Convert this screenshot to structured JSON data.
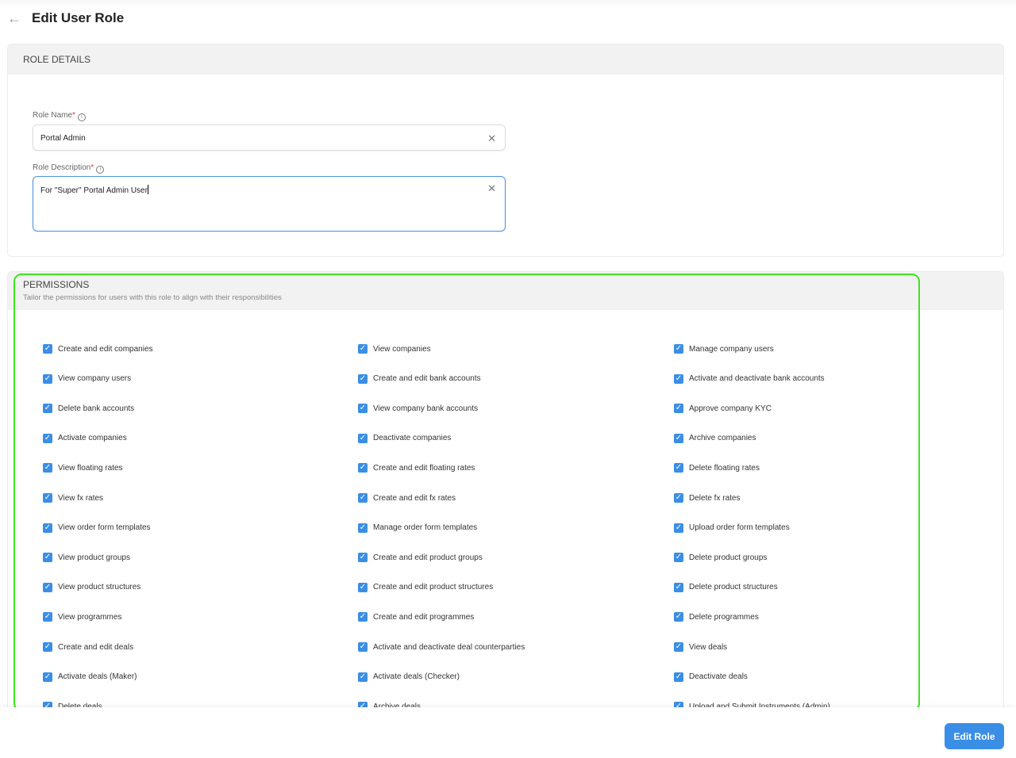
{
  "header": {
    "title": "Edit User Role",
    "back_icon": "arrow-left-icon"
  },
  "role_details": {
    "heading": "ROLE DETAILS",
    "role_name": {
      "label": "Role Name",
      "required": "*",
      "value": "Portal Admin"
    },
    "role_description": {
      "label": "Role Description",
      "required": "*",
      "value": "For \"Super\" Portal Admin User"
    }
  },
  "permissions": {
    "heading": "PERMISSIONS",
    "subtitle": "Tailor the permissions for users with this role to align with their responsibilities",
    "items": [
      [
        "Create and edit companies",
        "View companies",
        "Manage company users"
      ],
      [
        "View company users",
        "Create and edit bank accounts",
        "Activate and deactivate bank accounts"
      ],
      [
        "Delete bank accounts",
        "View company bank accounts",
        "Approve company KYC"
      ],
      [
        "Activate companies",
        "Deactivate companies",
        "Archive companies"
      ],
      [
        "View floating rates",
        "Create and edit floating rates",
        "Delete floating rates"
      ],
      [
        "View fx rates",
        "Create and edit fx rates",
        "Delete fx rates"
      ],
      [
        "View order form templates",
        "Manage order form templates",
        "Upload order form templates"
      ],
      [
        "View product groups",
        "Create and edit product groups",
        "Delete product groups"
      ],
      [
        "View product structures",
        "Create and edit product structures",
        "Delete product structures"
      ],
      [
        "View programmes",
        "Create and edit programmes",
        "Delete programmes"
      ],
      [
        "Create and edit deals",
        "Activate and deactivate deal counterparties",
        "View deals"
      ],
      [
        "Activate deals (Maker)",
        "Activate deals (Checker)",
        "Deactivate deals"
      ],
      [
        "Delete deals",
        "Archive deals",
        "Upload and Submit Instruments (Admin)"
      ]
    ],
    "checked": true
  },
  "footer": {
    "submit_label": "Edit Role"
  },
  "colors": {
    "accent": "#3b8ee6",
    "highlight": "#3ee51f"
  }
}
